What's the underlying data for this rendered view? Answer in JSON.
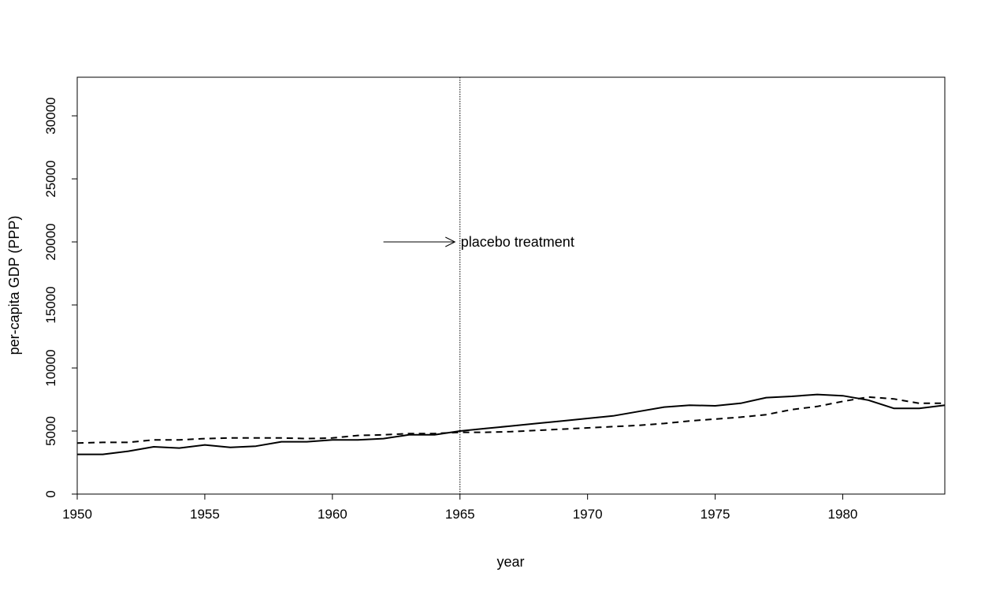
{
  "chart_data": {
    "type": "line",
    "title": "",
    "xlabel": "year",
    "ylabel": "per-capita GDP (PPP)",
    "xlim": [
      1950,
      1984
    ],
    "ylim": [
      0,
      32000
    ],
    "x_ticks": [
      1950,
      1955,
      1960,
      1965,
      1970,
      1975,
      1980
    ],
    "x_tick_labels": [
      "1950",
      "1955",
      "1960",
      "1965",
      "1970",
      "1975",
      "1980"
    ],
    "y_ticks": [
      0,
      5000,
      10000,
      15000,
      20000,
      25000,
      30000
    ],
    "y_tick_labels": [
      "0",
      "5000",
      "10000",
      "15000",
      "20000",
      "25000",
      "30000"
    ],
    "grid": false,
    "legend": "none",
    "x": [
      1950,
      1951,
      1952,
      1953,
      1954,
      1955,
      1956,
      1957,
      1958,
      1959,
      1960,
      1961,
      1962,
      1963,
      1964,
      1965,
      1966,
      1967,
      1968,
      1969,
      1970,
      1971,
      1972,
      1973,
      1974,
      1975,
      1976,
      1977,
      1978,
      1979,
      1980,
      1981,
      1982,
      1983,
      1984
    ],
    "series": [
      {
        "style": "solid",
        "color": "#000000",
        "values": [
          3150,
          3150,
          3400,
          3750,
          3650,
          3900,
          3700,
          3800,
          4150,
          4150,
          4300,
          4300,
          4400,
          4700,
          4700,
          5000,
          5200,
          5400,
          5600,
          5800,
          6000,
          6200,
          6550,
          6900,
          7050,
          7000,
          7200,
          7650,
          7750,
          7900,
          7800,
          7450,
          6800,
          6800,
          7050
        ]
      },
      {
        "style": "dashed",
        "color": "#000000",
        "values": [
          4050,
          4100,
          4100,
          4300,
          4300,
          4400,
          4450,
          4450,
          4450,
          4400,
          4450,
          4650,
          4700,
          4800,
          4800,
          4900,
          4900,
          4950,
          5050,
          5150,
          5250,
          5350,
          5450,
          5600,
          5800,
          5950,
          6100,
          6300,
          6700,
          6950,
          7350,
          7700,
          7550,
          7200,
          7200
        ]
      }
    ],
    "vline": {
      "x": 1965,
      "style": "dotted"
    },
    "annotation": {
      "text": "placebo treatment",
      "arrow_from": [
        1962,
        20000
      ],
      "arrow_to": [
        1964.8,
        20000
      ]
    }
  }
}
